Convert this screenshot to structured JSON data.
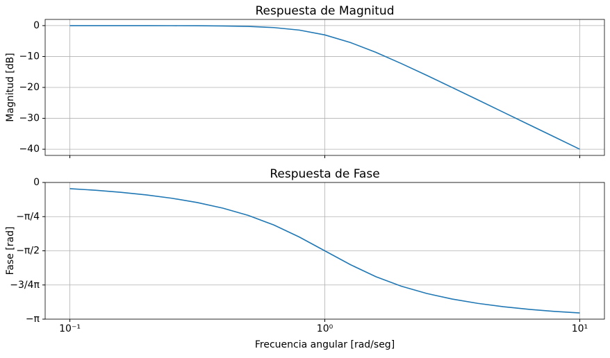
{
  "chart_data": [
    {
      "type": "line",
      "title": "Respuesta de Magnitud",
      "ylabel": "Magnitud [dB]",
      "xscale": "log",
      "grid": true,
      "x": [
        0.1,
        0.1259,
        0.1585,
        0.1995,
        0.2512,
        0.3162,
        0.3981,
        0.5012,
        0.631,
        0.7943,
        1,
        1.2589,
        1.5849,
        1.9953,
        2.5119,
        3.1623,
        3.9811,
        5.0119,
        6.3096,
        7.9433,
        10
      ],
      "series": [
        {
          "color": "#1f77b4",
          "values": [
            -0.0004,
            -0.0011,
            -0.0027,
            -0.0069,
            -0.0173,
            -0.0432,
            -0.1077,
            -0.2657,
            -0.6389,
            -1.455,
            -3.0103,
            -5.456,
            -8.639,
            -12.266,
            -16.107,
            -20.043,
            -24.017,
            -28.007,
            -32.003,
            -36.001,
            -40.0004
          ]
        }
      ],
      "xlim": [
        0.08,
        12.5
      ],
      "xticks": [
        0.1,
        1,
        10
      ],
      "ylim": [
        -42,
        2
      ],
      "yticks": [
        {
          "value": 0,
          "label": "0"
        },
        {
          "value": -10,
          "label": "−10"
        },
        {
          "value": -20,
          "label": "−20"
        },
        {
          "value": -30,
          "label": "−30"
        },
        {
          "value": -40,
          "label": "−40"
        }
      ]
    },
    {
      "type": "line",
      "title": "Respuesta de Fase",
      "ylabel": "Fase [rad]",
      "xlabel": "Frecuencia angular [rad/seg]",
      "xscale": "log",
      "grid": true,
      "x": [
        0.1,
        0.1259,
        0.1585,
        0.1995,
        0.2512,
        0.3162,
        0.3981,
        0.5012,
        0.631,
        0.7943,
        1,
        1.2589,
        1.5849,
        1.9953,
        2.5119,
        3.1623,
        3.9811,
        5.0119,
        6.3096,
        7.9433,
        10
      ],
      "series": [
        {
          "color": "#1f77b4",
          "values": [
            -0.1419,
            -0.179,
            -0.226,
            -0.2859,
            -0.3625,
            -0.4612,
            -0.5899,
            -0.7579,
            -0.9774,
            -1.2537,
            -1.5708,
            -1.8879,
            -2.1642,
            -2.3837,
            -2.5517,
            -2.6804,
            -2.7791,
            -2.8556,
            -2.9156,
            -2.9626,
            -2.9997
          ]
        }
      ],
      "xlim": [
        0.08,
        12.5
      ],
      "xticks": [
        {
          "value": 0.1,
          "label": "10⁻¹"
        },
        {
          "value": 1,
          "label": "10⁰"
        },
        {
          "value": 10,
          "label": "10¹"
        }
      ],
      "ylim": [
        -3.1416,
        0
      ],
      "yticks": [
        {
          "value": 0,
          "label": "0"
        },
        {
          "value": -0.7854,
          "label": "−π/4"
        },
        {
          "value": -1.5708,
          "label": "−π/2"
        },
        {
          "value": -2.3562,
          "label": "−3/4π"
        },
        {
          "value": -3.1416,
          "label": "−π"
        }
      ]
    }
  ]
}
